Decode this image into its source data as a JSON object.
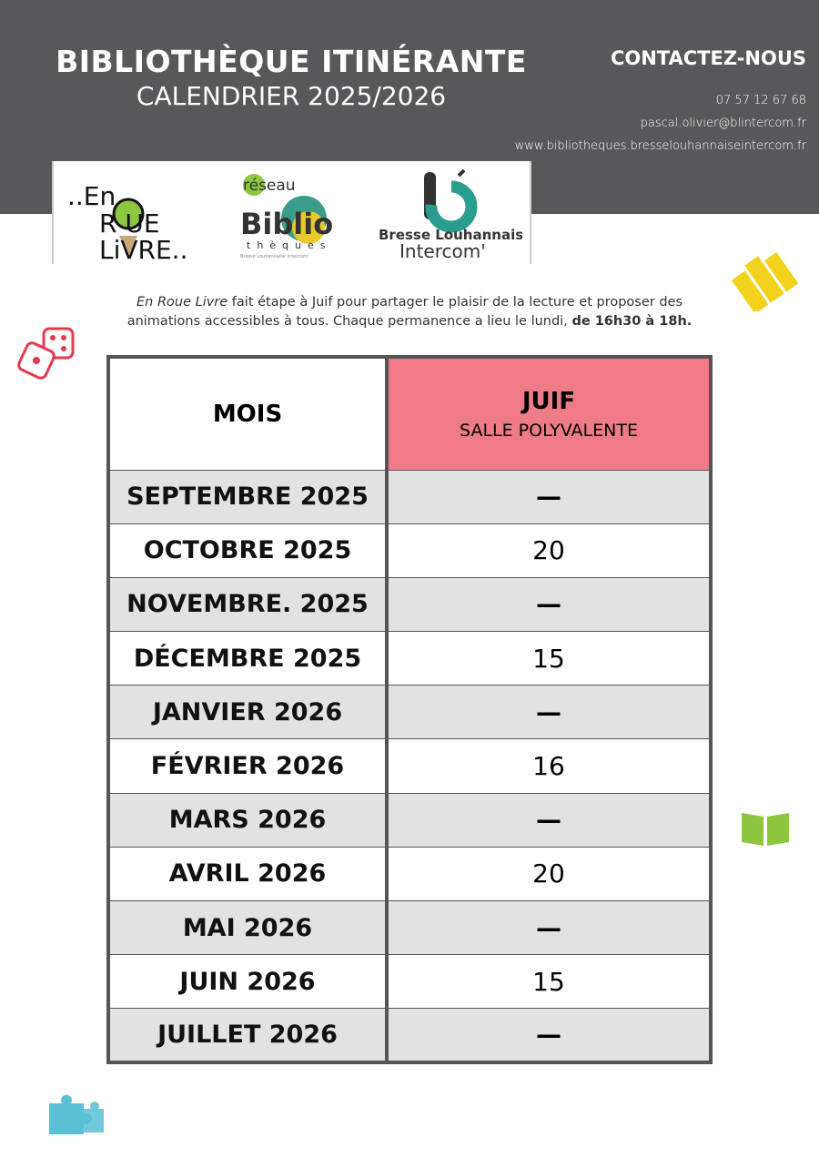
{
  "header": {
    "title": "BIBLIOTHÈQUE ITINÉRANTE",
    "subtitle": "CALENDRIER 2025/2026"
  },
  "contact": {
    "heading": "CONTACTEZ-NOUS",
    "phone": "07 57 12 67 68",
    "email": "pascal.olivier@blintercom.fr",
    "website": "www.bibliotheques.bresselouhannaiseintercom.fr"
  },
  "logos": [
    {
      "name": "En Roue Livre",
      "text": "..En ROUE LiVRE.."
    },
    {
      "name": "réseau Biblio thèques",
      "text": "réseau Biblio thèques Bresse Louhannaise Intercom'"
    },
    {
      "name": "Bresse Louhannaise Intercom",
      "line1": "Bresse Louhannaise",
      "line2": "Intercom'"
    }
  ],
  "intro": {
    "italic": "En Roue Livre",
    "text": " fait étape à Juif pour partager le plaisir de la lecture et proposer des animations accessibles à tous. Chaque permanence a lieu le lundi, ",
    "bold": "de 16h30 à 18h."
  },
  "table": {
    "col_month": "MOIS",
    "col_location": "JUIF",
    "col_location_sub": "SALLE POLYVALENTE",
    "rows": [
      {
        "month": "SEPTEMBRE 2025",
        "day": "—"
      },
      {
        "month": "OCTOBRE 2025",
        "day": "20"
      },
      {
        "month": "NOVEMBRE. 2025",
        "day": "—"
      },
      {
        "month": "DÉCEMBRE 2025",
        "day": "15"
      },
      {
        "month": "JANVIER 2026",
        "day": "—"
      },
      {
        "month": "FÉVRIER 2026",
        "day": "16"
      },
      {
        "month": "MARS 2026",
        "day": "—"
      },
      {
        "month": "AVRIL 2026",
        "day": "20"
      },
      {
        "month": "MAI 2026",
        "day": "—"
      },
      {
        "month": "JUIN 2026",
        "day": "15"
      },
      {
        "month": "JUILLET 2026",
        "day": "—"
      }
    ]
  },
  "decorations": [
    "dice-icon",
    "books-icon",
    "open-book-icon",
    "puzzle-icon"
  ],
  "colors": {
    "header": "#58585a",
    "accent_pink": "#ef7b86",
    "row_gray": "#e2e2e2"
  }
}
